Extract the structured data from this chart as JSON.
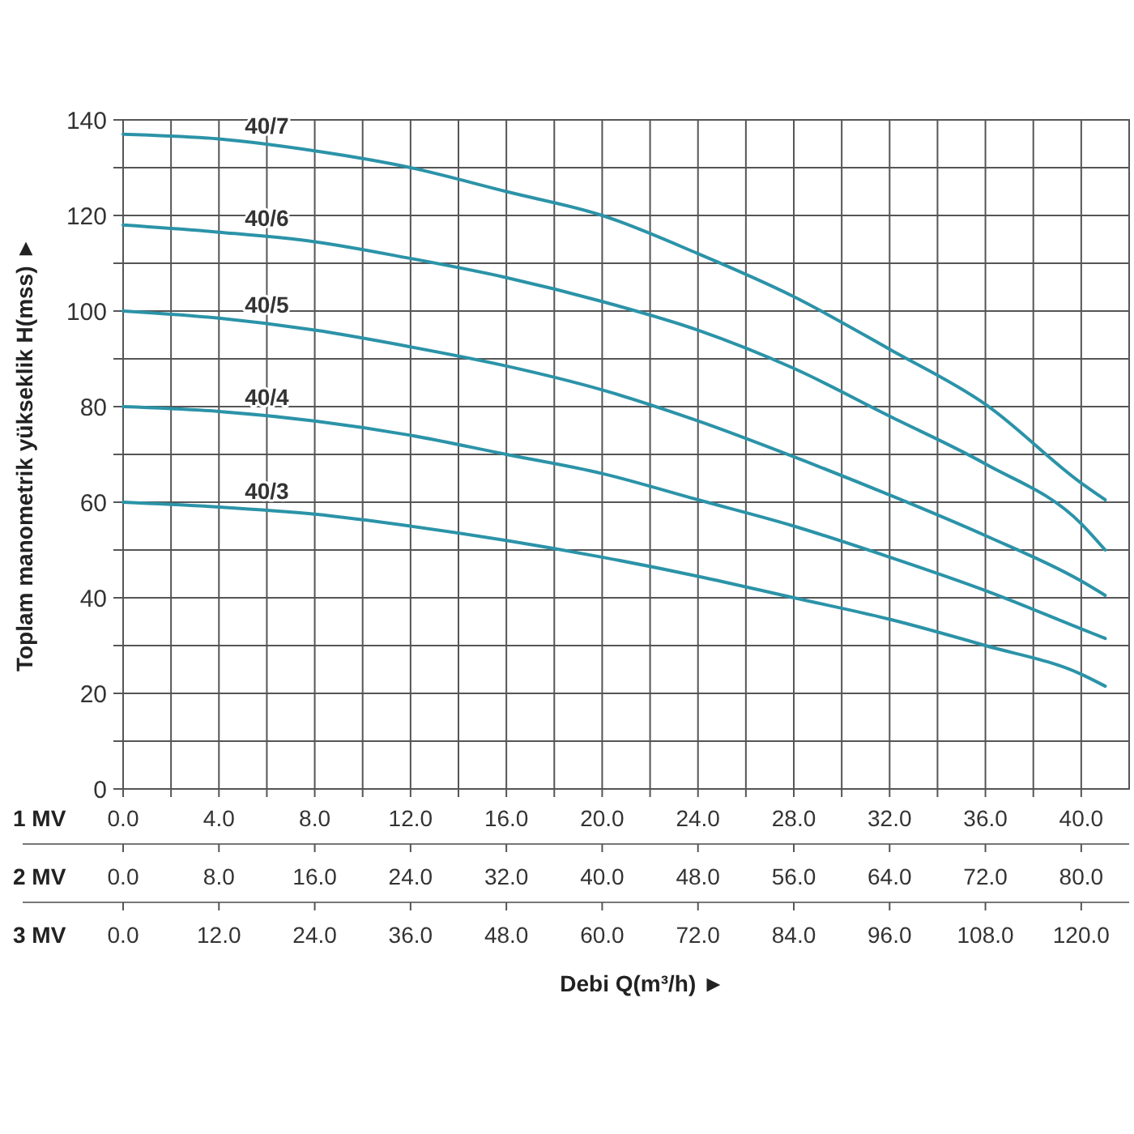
{
  "chart_data": {
    "type": "line",
    "xlabel": "Debi Q(m³/h) ►",
    "ylabel": "Toplam manometrik yükseklik H(mss) ►",
    "annotations": [
      "1 MV",
      "2 MV",
      "3 MV",
      "0.0",
      "12.0",
      "24.0",
      "36.0",
      "48.0",
      "60.0",
      "72.0",
      "84.0",
      "96.0",
      "108.0",
      "120.0"
    ],
    "xlim": [
      0,
      42
    ],
    "ylim": [
      0,
      140
    ],
    "xticks": [
      {
        "value": 0,
        "label": "0.0"
      },
      {
        "value": 2,
        "label": null
      },
      {
        "value": 4,
        "label": "4.0"
      },
      {
        "value": 6,
        "label": null
      },
      {
        "value": 8,
        "label": "8.0"
      },
      {
        "value": 10,
        "label": null
      },
      {
        "value": 12,
        "label": "12.0"
      },
      {
        "value": 14,
        "label": null
      },
      {
        "value": 16,
        "label": "16.0"
      },
      {
        "value": 18,
        "label": null
      },
      {
        "value": 20,
        "label": "20.0"
      },
      {
        "value": 22,
        "label": null
      },
      {
        "value": 24,
        "label": "24.0"
      },
      {
        "value": 26,
        "label": null
      },
      {
        "value": 28,
        "label": "28.0"
      },
      {
        "value": 30,
        "label": null
      },
      {
        "value": 32,
        "label": "32.0"
      },
      {
        "value": 34,
        "label": null
      },
      {
        "value": 36,
        "label": "36.0"
      },
      {
        "value": 38,
        "label": null
      },
      {
        "value": 40,
        "label": "40.0"
      }
    ],
    "x2lim": [
      0,
      84
    ],
    "x2ticks": [
      {
        "value": 0,
        "label": "0.0"
      },
      {
        "value": 8,
        "label": "8.0"
      },
      {
        "value": 16,
        "label": "16.0"
      },
      {
        "value": 24,
        "label": "24.0"
      },
      {
        "value": 32,
        "label": "32.0"
      },
      {
        "value": 40,
        "label": "40.0"
      },
      {
        "value": 48,
        "label": "48.0"
      },
      {
        "value": 56,
        "label": "56.0"
      },
      {
        "value": 64,
        "label": "64.0"
      },
      {
        "value": 72,
        "label": "72.0"
      },
      {
        "value": 80,
        "label": "80.0"
      }
    ],
    "yticks": [
      0,
      {
        "value": 10,
        "label": null
      },
      20,
      {
        "value": 30,
        "label": null
      },
      40,
      {
        "value": 50,
        "label": null
      },
      60,
      {
        "value": 70,
        "label": null
      },
      80,
      {
        "value": 90,
        "label": null
      },
      100,
      {
        "value": 110,
        "label": null
      },
      120,
      {
        "value": 130,
        "label": null
      },
      140
    ],
    "grid": true,
    "legend": false,
    "marker": "none",
    "line_style": "solid",
    "x": [
      0,
      4,
      8,
      12,
      16,
      20,
      24,
      28,
      32,
      36,
      40,
      41
    ],
    "series": [
      {
        "name": "40/7",
        "color": "#2b93a8",
        "values": [
          137,
          136,
          133.5,
          130,
          125,
          120,
          112,
          103,
          92,
          80.5,
          64,
          60.5
        ]
      },
      {
        "name": "40/6",
        "color": "#2b93a8",
        "values": [
          118,
          116.5,
          114.5,
          111,
          107,
          102,
          96,
          88,
          78,
          68,
          55.5,
          50
        ]
      },
      {
        "name": "40/5",
        "color": "#2b93a8",
        "values": [
          100,
          98.5,
          96,
          92.5,
          88.5,
          83.5,
          77,
          69.5,
          61.5,
          53,
          43.5,
          40.5
        ]
      },
      {
        "name": "40/4",
        "color": "#2b93a8",
        "values": [
          80,
          79,
          77,
          74,
          70,
          66,
          60.5,
          55,
          48.5,
          41.5,
          33.5,
          31.5
        ]
      },
      {
        "name": "40/3",
        "color": "#2b93a8",
        "values": [
          60,
          59,
          57.5,
          55,
          52,
          48.5,
          44.5,
          40,
          35.5,
          30,
          24,
          21.5
        ]
      }
    ]
  }
}
